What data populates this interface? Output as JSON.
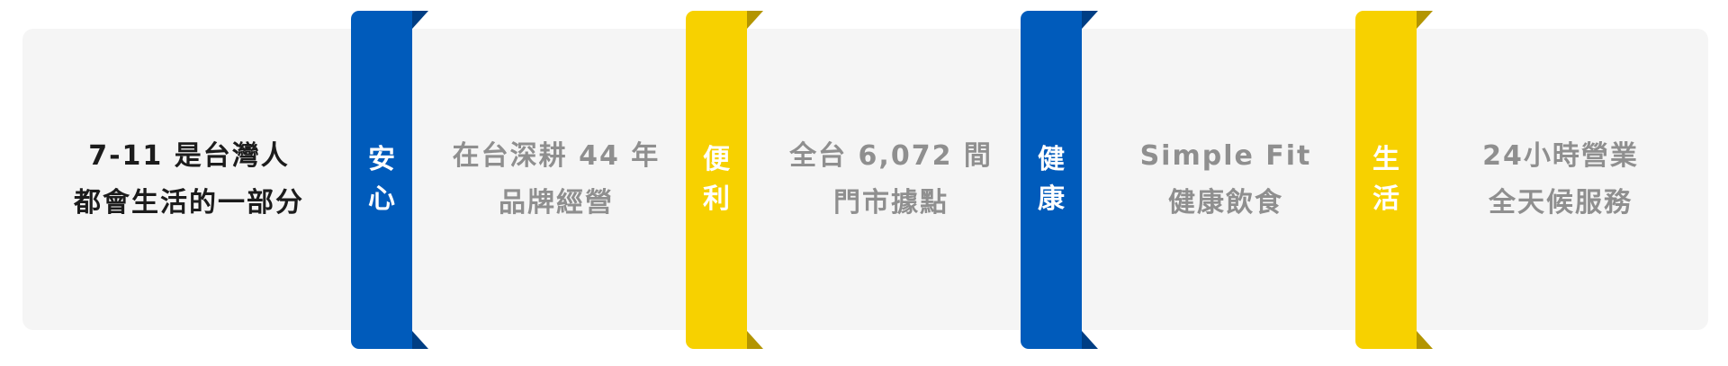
{
  "intro": {
    "line1": "7-11 是台灣人",
    "line2": "都會生活的一部分"
  },
  "pillars": [
    {
      "tag": [
        "安",
        "心"
      ],
      "color": "#005bbb",
      "text": [
        "在台深耕 44 年",
        "品牌經營"
      ]
    },
    {
      "tag": [
        "便",
        "利"
      ],
      "color": "#f7d100",
      "text": [
        "全台 6,072 間",
        "門市據點"
      ]
    },
    {
      "tag": [
        "健",
        "康"
      ],
      "color": "#005bbb",
      "text": [
        "Simple Fit",
        "健康飲食"
      ]
    },
    {
      "tag": [
        "生",
        "活"
      ],
      "color": "#f7d100",
      "text": [
        "24小時營業",
        "全天候服務"
      ]
    }
  ]
}
